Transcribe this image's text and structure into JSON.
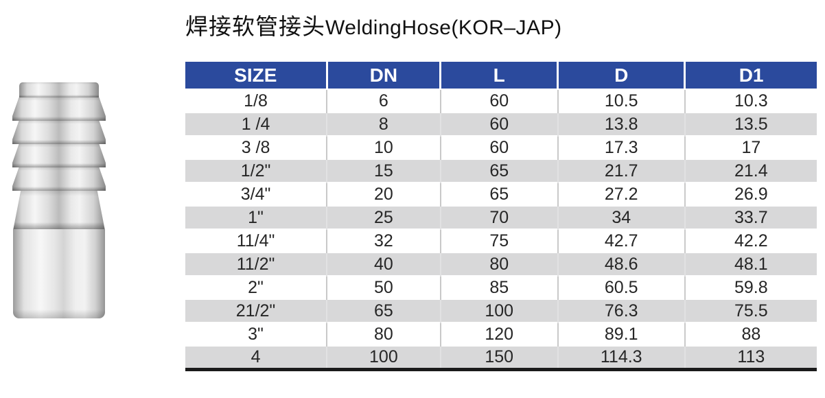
{
  "title": {
    "chinese": "焊接软管接头",
    "english": "WeldingHose(KOR–JAP)"
  },
  "product_image": {
    "name": "stainless-steel-hose-barb-fitting"
  },
  "table": {
    "headers": [
      "SIZE",
      "DN",
      "L",
      "D",
      "D1"
    ],
    "column_width_pct": [
      22.4,
      18.0,
      18.6,
      20.1,
      20.9
    ],
    "rows": [
      [
        "1/8",
        "6",
        "60",
        "10.5",
        "10.3"
      ],
      [
        "1 /4",
        "8",
        "60",
        "13.8",
        "13.5"
      ],
      [
        "3 /8",
        "10",
        "60",
        "17.3",
        "17"
      ],
      [
        "1/2\"",
        "15",
        "65",
        "21.7",
        "21.4"
      ],
      [
        "3/4\"",
        "20",
        "65",
        "27.2",
        "26.9"
      ],
      [
        "1\"",
        "25",
        "70",
        "34",
        "33.7"
      ],
      [
        "11/4\"",
        "32",
        "75",
        "42.7",
        "42.2"
      ],
      [
        "11/2\"",
        "40",
        "80",
        "48.6",
        "48.1"
      ],
      [
        "2\"",
        "50",
        "85",
        "60.5",
        "59.8"
      ],
      [
        "21/2\"",
        "65",
        "100",
        "76.3",
        "75.5"
      ],
      [
        "3\"",
        "80",
        "120",
        "89.1",
        "88"
      ],
      [
        "4",
        "100",
        "150",
        "114.3",
        "113"
      ]
    ],
    "colors": {
      "header_bg": "#2b4a9d",
      "header_text": "#ffffff",
      "row_alt_bg": "#d8d8d9",
      "row_bg": "#ffffff",
      "divider": "#c9c9c9",
      "bottom_border": "#1b1b1b"
    }
  }
}
